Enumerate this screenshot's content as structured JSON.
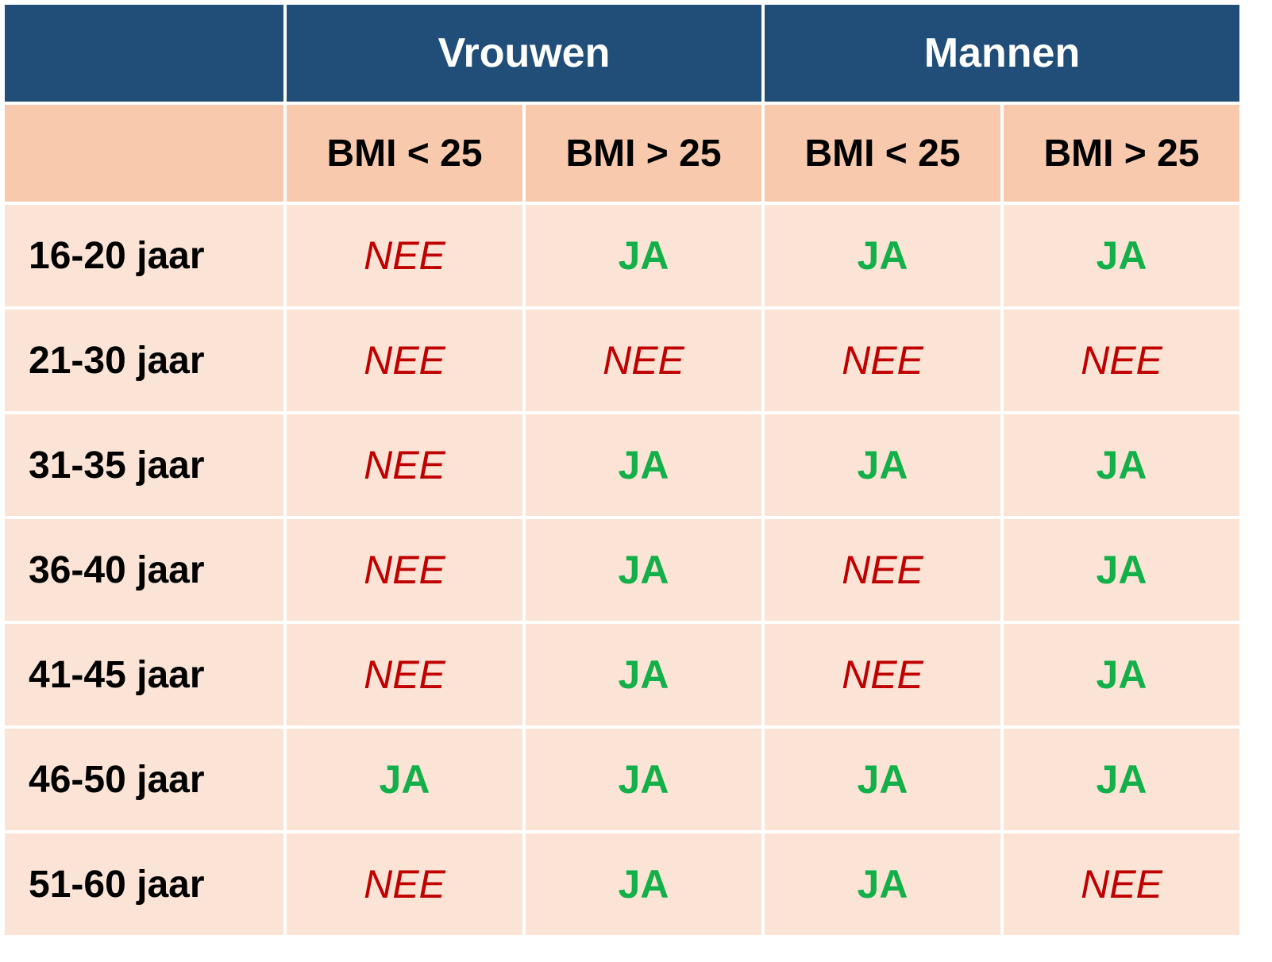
{
  "table": {
    "groups": [
      {
        "label": "Vrouwen"
      },
      {
        "label": "Mannen"
      }
    ],
    "subheaders": [
      "BMI < 25",
      "BMI > 25",
      "BMI < 25",
      "BMI > 25"
    ],
    "rows": [
      {
        "label": "16-20 jaar",
        "values": [
          "NEE",
          "JA",
          "JA",
          "JA"
        ]
      },
      {
        "label": "21-30 jaar",
        "values": [
          "NEE",
          "NEE",
          "NEE",
          "NEE"
        ]
      },
      {
        "label": "31-35 jaar",
        "values": [
          "NEE",
          "JA",
          "JA",
          "JA"
        ]
      },
      {
        "label": "36-40 jaar",
        "values": [
          "NEE",
          "JA",
          "NEE",
          "JA"
        ]
      },
      {
        "label": "41-45 jaar",
        "values": [
          "NEE",
          "JA",
          "NEE",
          "JA"
        ]
      },
      {
        "label": "46-50 jaar",
        "values": [
          "JA",
          "JA",
          "JA",
          "JA"
        ]
      },
      {
        "label": "51-60 jaar",
        "values": [
          "NEE",
          "JA",
          "JA",
          "NEE"
        ]
      }
    ]
  },
  "colors": {
    "header_bg": "#204e79",
    "subheader_bg": "#f8c9ac",
    "body_bg": "#fbe4d6",
    "yes_text": "#13b04a",
    "no_text": "#c00000"
  }
}
